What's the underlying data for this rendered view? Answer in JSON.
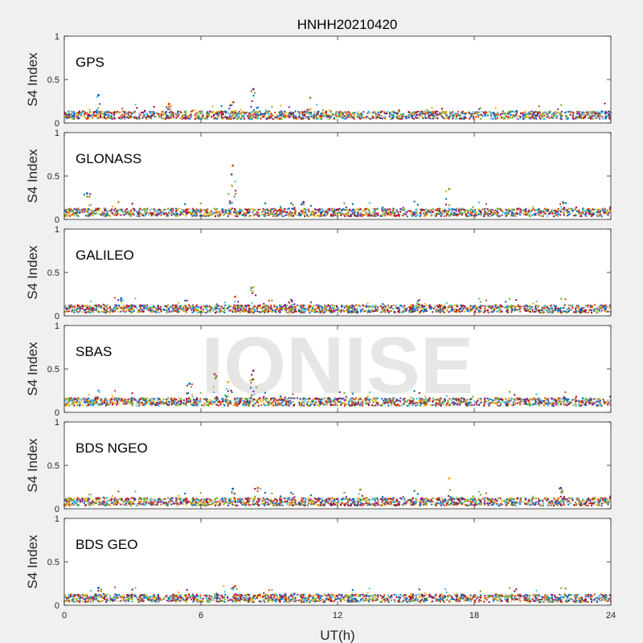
{
  "figure": {
    "title": "HNHH20210420",
    "watermark": "IONISE",
    "xlabel": "UT(h)",
    "background": "#f0f0f0"
  },
  "chart_data": {
    "type": "scatter",
    "xlim": [
      0,
      24
    ],
    "ylim": [
      0,
      1
    ],
    "xticks": [
      0,
      6,
      12,
      18,
      24
    ],
    "yticks": [
      0,
      0.5,
      1
    ],
    "ytick_labels": [
      "0",
      "0.5",
      "1"
    ],
    "ylabel": "S4 Index",
    "grid": false,
    "series_colors": [
      "#0072BD",
      "#D95319",
      "#EDB120",
      "#7E2F8E",
      "#77AC30",
      "#4DBEEE",
      "#A2142F"
    ],
    "panels": [
      {
        "label": "GPS",
        "baseline": 0.09,
        "spikes": [
          [
            1.5,
            0.32
          ],
          [
            4.6,
            0.22
          ],
          [
            7.4,
            0.24
          ],
          [
            8.3,
            0.39
          ],
          [
            10.8,
            0.29
          ]
        ]
      },
      {
        "label": "GLONASS",
        "baseline": 0.08,
        "spikes": [
          [
            1.0,
            0.3
          ],
          [
            7.4,
            0.62
          ],
          [
            7.35,
            0.52
          ],
          [
            10.5,
            0.2
          ],
          [
            16.9,
            0.35
          ],
          [
            21.9,
            0.2
          ]
        ]
      },
      {
        "label": "GALILEO",
        "baseline": 0.08,
        "spikes": [
          [
            2.5,
            0.2
          ],
          [
            7.5,
            0.22
          ],
          [
            8.3,
            0.33
          ],
          [
            10.0,
            0.17
          ],
          [
            15.5,
            0.14
          ],
          [
            21.5,
            0.12
          ]
        ]
      },
      {
        "label": "SBAS",
        "baseline": 0.12,
        "spikes": [
          [
            5.5,
            0.33
          ],
          [
            6.6,
            0.44
          ],
          [
            7.2,
            0.35
          ],
          [
            8.3,
            0.48
          ],
          [
            8.3,
            0.38
          ],
          [
            1.5,
            0.25
          ]
        ]
      },
      {
        "label": "BDS NGEO",
        "baseline": 0.08,
        "spikes": [
          [
            7.4,
            0.23
          ],
          [
            8.5,
            0.24
          ],
          [
            16.9,
            0.35
          ],
          [
            21.8,
            0.24
          ],
          [
            13.0,
            0.22
          ]
        ]
      },
      {
        "label": "BDS GEO",
        "baseline": 0.08,
        "spikes": [
          [
            1.5,
            0.2
          ],
          [
            7.5,
            0.22
          ]
        ]
      }
    ]
  }
}
